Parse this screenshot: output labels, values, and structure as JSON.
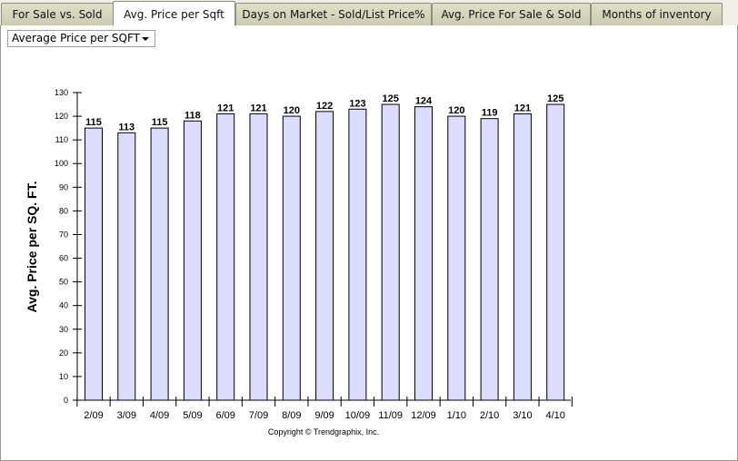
{
  "tabs": [
    {
      "label": "For Sale vs. Sold",
      "active": false
    },
    {
      "label": "Avg. Price per Sqft",
      "active": true
    },
    {
      "label": "Days on Market - Sold/List Price%",
      "active": false
    },
    {
      "label": "Avg. Price For Sale & Sold",
      "active": false
    },
    {
      "label": "Months of inventory",
      "active": false
    }
  ],
  "dropdown": {
    "selected": "Average Price per SQFT"
  },
  "chart_data": {
    "type": "bar",
    "categories": [
      "2/09",
      "3/09",
      "4/09",
      "5/09",
      "6/09",
      "7/09",
      "8/09",
      "9/09",
      "10/09",
      "11/09",
      "12/09",
      "1/10",
      "2/10",
      "3/10",
      "4/10"
    ],
    "values": [
      115,
      113,
      115,
      118,
      121,
      121,
      120,
      122,
      123,
      125,
      124,
      120,
      119,
      121,
      125
    ],
    "ylabel": "Avg. Price per SQ. FT.",
    "xlabel": "",
    "ylim": [
      0,
      130
    ],
    "yticks": [
      0,
      10,
      20,
      30,
      40,
      50,
      60,
      70,
      80,
      90,
      100,
      110,
      120,
      130
    ],
    "bar_color": "#dcdcff",
    "bar_stroke": "#000000",
    "grid": false,
    "data_labels": true,
    "copyright": "Copyright © Trendgraphix, Inc."
  }
}
